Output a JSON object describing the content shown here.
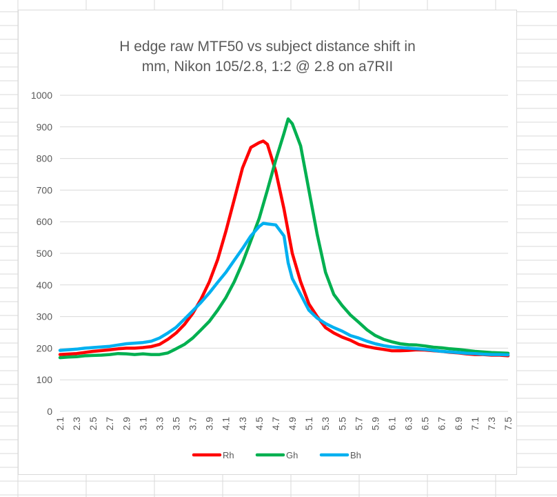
{
  "colors": {
    "Rh": "#ff0000",
    "Gh": "#00b050",
    "Bh": "#00b0f0",
    "text": "#595959",
    "gridline": "#d9d9d9",
    "sheet_grid": "#dadada"
  },
  "chart_data": {
    "type": "line",
    "title_lines": [
      "H edge raw MTF50 vs subject distance shift in",
      "mm, Nikon 105/2.8, 1:2 @ 2.8 on a7RII"
    ],
    "xlabel": "",
    "ylabel": "",
    "ylim": [
      0,
      1000
    ],
    "yticks": [
      "0",
      "100",
      "200",
      "300",
      "400",
      "500",
      "600",
      "700",
      "800",
      "900",
      "1000"
    ],
    "x_categories": [
      "2.1",
      "2.3",
      "2.5",
      "2.7",
      "2.9",
      "3.1",
      "3.3",
      "3.5",
      "3.7",
      "3.9",
      "4.1",
      "4.3",
      "4.5",
      "4.7",
      "4.9",
      "5.1",
      "5.3",
      "5.5",
      "5.7",
      "5.9",
      "6.1",
      "6.3",
      "6.5",
      "6.7",
      "6.9",
      "7.1",
      "7.3",
      "7.5"
    ],
    "x_range": [
      2.1,
      7.5
    ],
    "grid": "horizontal",
    "legend_position": "bottom",
    "series": [
      {
        "name": "Rh",
        "color": "#ff0000",
        "points": [
          [
            2.1,
            180
          ],
          [
            2.3,
            183
          ],
          [
            2.5,
            190
          ],
          [
            2.7,
            195
          ],
          [
            2.8,
            198
          ],
          [
            2.9,
            200
          ],
          [
            3.0,
            200
          ],
          [
            3.1,
            202
          ],
          [
            3.2,
            205
          ],
          [
            3.3,
            212
          ],
          [
            3.4,
            228
          ],
          [
            3.5,
            248
          ],
          [
            3.6,
            275
          ],
          [
            3.7,
            310
          ],
          [
            3.8,
            355
          ],
          [
            3.9,
            410
          ],
          [
            4.0,
            480
          ],
          [
            4.1,
            570
          ],
          [
            4.2,
            670
          ],
          [
            4.3,
            770
          ],
          [
            4.4,
            835
          ],
          [
            4.5,
            850
          ],
          [
            4.55,
            855
          ],
          [
            4.6,
            845
          ],
          [
            4.7,
            760
          ],
          [
            4.8,
            640
          ],
          [
            4.9,
            500
          ],
          [
            5.0,
            410
          ],
          [
            5.1,
            340
          ],
          [
            5.2,
            300
          ],
          [
            5.3,
            265
          ],
          [
            5.4,
            248
          ],
          [
            5.5,
            235
          ],
          [
            5.6,
            225
          ],
          [
            5.7,
            212
          ],
          [
            5.8,
            205
          ],
          [
            5.9,
            200
          ],
          [
            6.0,
            196
          ],
          [
            6.1,
            192
          ],
          [
            6.2,
            192
          ],
          [
            6.3,
            193
          ],
          [
            6.4,
            195
          ],
          [
            6.5,
            194
          ],
          [
            6.6,
            192
          ],
          [
            6.7,
            190
          ],
          [
            6.8,
            187
          ],
          [
            6.9,
            185
          ],
          [
            7.0,
            182
          ],
          [
            7.1,
            180
          ],
          [
            7.2,
            180
          ],
          [
            7.3,
            178
          ],
          [
            7.4,
            178
          ],
          [
            7.5,
            176
          ]
        ]
      },
      {
        "name": "Gh",
        "color": "#00b050",
        "points": [
          [
            2.1,
            170
          ],
          [
            2.2,
            172
          ],
          [
            2.3,
            173
          ],
          [
            2.4,
            176
          ],
          [
            2.5,
            177
          ],
          [
            2.6,
            178
          ],
          [
            2.7,
            180
          ],
          [
            2.8,
            183
          ],
          [
            2.9,
            182
          ],
          [
            3.0,
            180
          ],
          [
            3.1,
            182
          ],
          [
            3.2,
            180
          ],
          [
            3.3,
            180
          ],
          [
            3.4,
            185
          ],
          [
            3.5,
            198
          ],
          [
            3.6,
            212
          ],
          [
            3.7,
            232
          ],
          [
            3.8,
            258
          ],
          [
            3.9,
            285
          ],
          [
            4.0,
            320
          ],
          [
            4.1,
            360
          ],
          [
            4.2,
            410
          ],
          [
            4.3,
            470
          ],
          [
            4.4,
            540
          ],
          [
            4.5,
            610
          ],
          [
            4.6,
            700
          ],
          [
            4.7,
            795
          ],
          [
            4.8,
            880
          ],
          [
            4.85,
            925
          ],
          [
            4.9,
            910
          ],
          [
            5.0,
            840
          ],
          [
            5.1,
            700
          ],
          [
            5.2,
            560
          ],
          [
            5.3,
            440
          ],
          [
            5.4,
            370
          ],
          [
            5.5,
            335
          ],
          [
            5.6,
            305
          ],
          [
            5.7,
            282
          ],
          [
            5.8,
            258
          ],
          [
            5.9,
            240
          ],
          [
            6.0,
            228
          ],
          [
            6.1,
            220
          ],
          [
            6.2,
            214
          ],
          [
            6.3,
            211
          ],
          [
            6.4,
            210
          ],
          [
            6.5,
            207
          ],
          [
            6.6,
            203
          ],
          [
            6.7,
            201
          ],
          [
            6.8,
            198
          ],
          [
            6.9,
            196
          ],
          [
            7.0,
            193
          ],
          [
            7.1,
            190
          ],
          [
            7.2,
            188
          ],
          [
            7.3,
            186
          ],
          [
            7.4,
            185
          ],
          [
            7.5,
            184
          ]
        ]
      },
      {
        "name": "Bh",
        "color": "#00b0f0",
        "points": [
          [
            2.1,
            193
          ],
          [
            2.2,
            195
          ],
          [
            2.3,
            197
          ],
          [
            2.4,
            200
          ],
          [
            2.5,
            202
          ],
          [
            2.6,
            204
          ],
          [
            2.7,
            206
          ],
          [
            2.8,
            210
          ],
          [
            2.9,
            214
          ],
          [
            3.0,
            216
          ],
          [
            3.1,
            218
          ],
          [
            3.2,
            222
          ],
          [
            3.3,
            232
          ],
          [
            3.4,
            248
          ],
          [
            3.5,
            266
          ],
          [
            3.6,
            292
          ],
          [
            3.7,
            318
          ],
          [
            3.8,
            345
          ],
          [
            3.9,
            375
          ],
          [
            4.0,
            408
          ],
          [
            4.1,
            440
          ],
          [
            4.2,
            478
          ],
          [
            4.3,
            515
          ],
          [
            4.4,
            555
          ],
          [
            4.5,
            585
          ],
          [
            4.55,
            595
          ],
          [
            4.6,
            593
          ],
          [
            4.7,
            590
          ],
          [
            4.8,
            555
          ],
          [
            4.85,
            470
          ],
          [
            4.9,
            420
          ],
          [
            5.0,
            370
          ],
          [
            5.1,
            320
          ],
          [
            5.2,
            295
          ],
          [
            5.3,
            278
          ],
          [
            5.4,
            265
          ],
          [
            5.5,
            254
          ],
          [
            5.6,
            240
          ],
          [
            5.7,
            232
          ],
          [
            5.8,
            222
          ],
          [
            5.9,
            214
          ],
          [
            6.0,
            208
          ],
          [
            6.1,
            204
          ],
          [
            6.2,
            202
          ],
          [
            6.3,
            200
          ],
          [
            6.4,
            198
          ],
          [
            6.5,
            196
          ],
          [
            6.6,
            193
          ],
          [
            6.7,
            190
          ],
          [
            6.8,
            188
          ],
          [
            6.9,
            186
          ],
          [
            7.0,
            184
          ],
          [
            7.1,
            183
          ],
          [
            7.2,
            181
          ],
          [
            7.3,
            180
          ],
          [
            7.4,
            180
          ],
          [
            7.5,
            179
          ]
        ]
      }
    ]
  }
}
